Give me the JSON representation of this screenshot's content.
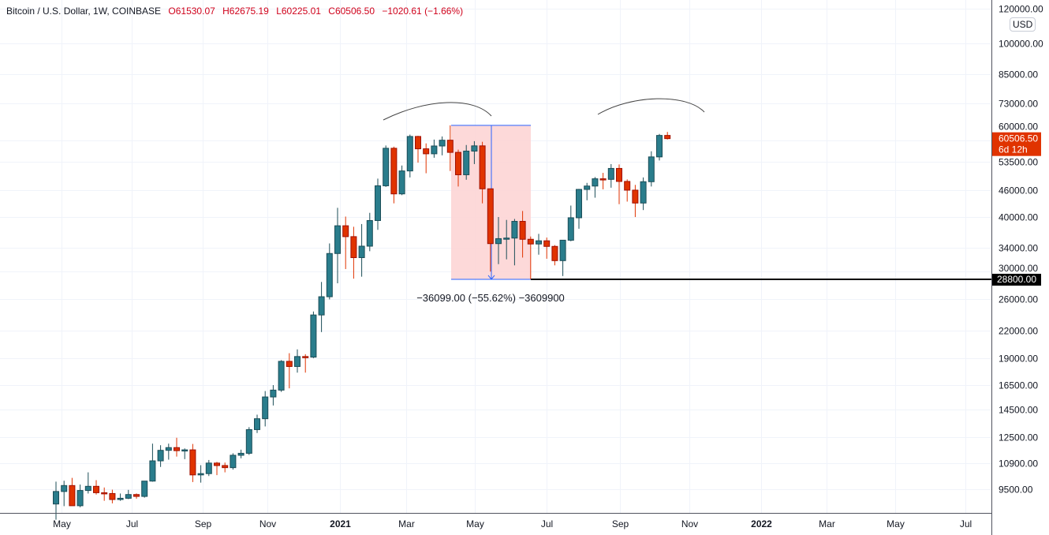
{
  "header": {
    "symbol": "Bitcoin / U.S. Dollar, 1W, COINBASE",
    "open": "O61530.07",
    "high": "H62675.19",
    "low": "L60225.01",
    "close": "C60506.50",
    "change": "−1020.61 (−1.66%)"
  },
  "currency": "USD",
  "colors": {
    "up": "#2a7d8c",
    "up_border": "#1b4d57",
    "down": "#e03300",
    "down_border": "#a01000",
    "measure_fill": "#fdd5d5",
    "measure_line": "#2962ff",
    "last_price": "#e03300"
  },
  "last_price_label": {
    "price": "60506.50",
    "countdown": "6d 12h"
  },
  "level_label": "28800.00",
  "measure_text": "−36099.00 (−55.62%) −3609900",
  "chart_data": {
    "type": "candlestick",
    "title": "Bitcoin / U.S. Dollar, 1W, COINBASE",
    "yscale": "log",
    "ylim": [
      8800,
      125000
    ],
    "y_ticks": [
      "9500.00",
      "10900.00",
      "12500.00",
      "14500.00",
      "16500.00",
      "19000.00",
      "22000.00",
      "26000.00",
      "30000.00",
      "34000.00",
      "40000.00",
      "46000.00",
      "53500.00",
      "60000.00",
      "73000.00",
      "85000.00",
      "100000.00",
      "120000.00"
    ],
    "x_ticks": [
      {
        "label": "May",
        "week": 0.7
      },
      {
        "label": "Jul",
        "week": 9.4
      },
      {
        "label": "Sep",
        "week": 18.2
      },
      {
        "label": "Nov",
        "week": 26.3
      },
      {
        "label": "2021",
        "week": 35.3
      },
      {
        "label": "Mar",
        "week": 43.5
      },
      {
        "label": "May",
        "week": 52.1
      },
      {
        "label": "Jul",
        "week": 61.0
      },
      {
        "label": "Sep",
        "week": 70.1
      },
      {
        "label": "Nov",
        "week": 78.7
      },
      {
        "label": "2022",
        "week": 87.6
      },
      {
        "label": "Mar",
        "week": 95.8
      },
      {
        "label": "May",
        "week": 104.3
      },
      {
        "label": "Jul",
        "week": 113.0
      }
    ],
    "candles": [
      [
        8800,
        9900,
        8100,
        9400
      ],
      [
        9400,
        9950,
        8700,
        9700
      ],
      [
        9700,
        10100,
        8900,
        8720
      ],
      [
        8720,
        9750,
        8650,
        9450
      ],
      [
        9450,
        10400,
        9300,
        9660
      ],
      [
        9660,
        9980,
        9250,
        9340
      ],
      [
        9340,
        9600,
        8950,
        9300
      ],
      [
        9300,
        9490,
        8830,
        9010
      ],
      [
        9010,
        9300,
        8950,
        9070
      ],
      [
        9070,
        9480,
        9030,
        9250
      ],
      [
        9250,
        9300,
        9050,
        9160
      ],
      [
        9160,
        9900,
        9100,
        9930
      ],
      [
        9930,
        12100,
        9900,
        11050
      ],
      [
        11050,
        12000,
        10700,
        11680
      ],
      [
        11680,
        12100,
        11120,
        11850
      ],
      [
        11850,
        12480,
        11300,
        11660
      ],
      [
        11660,
        11800,
        11150,
        11710
      ],
      [
        11710,
        12080,
        9880,
        10260
      ],
      [
        10260,
        10800,
        9850,
        10330
      ],
      [
        10330,
        11100,
        10200,
        10920
      ],
      [
        10920,
        10990,
        10250,
        10780
      ],
      [
        10780,
        10950,
        10400,
        10660
      ],
      [
        10660,
        11500,
        10550,
        11380
      ],
      [
        11380,
        11720,
        11200,
        11500
      ],
      [
        11500,
        13200,
        11400,
        13030
      ],
      [
        13030,
        14100,
        12800,
        13800
      ],
      [
        13800,
        15970,
        13250,
        15480
      ],
      [
        15480,
        16480,
        14800,
        16050
      ],
      [
        16050,
        18800,
        15900,
        18680
      ],
      [
        18680,
        19500,
        16200,
        18180
      ],
      [
        18180,
        19900,
        17600,
        19160
      ],
      [
        19160,
        19400,
        17600,
        19100
      ],
      [
        19100,
        24300,
        19000,
        23860
      ],
      [
        23860,
        28400,
        21800,
        26270
      ],
      [
        26270,
        34800,
        25900,
        33000
      ],
      [
        33000,
        42000,
        28200,
        38200
      ],
      [
        38200,
        40100,
        30400,
        36070
      ],
      [
        36070,
        38000,
        28900,
        32290
      ],
      [
        32290,
        38550,
        29200,
        34300
      ],
      [
        34300,
        40900,
        33400,
        39270
      ],
      [
        39270,
        49000,
        37400,
        47170
      ],
      [
        47170,
        58350,
        46900,
        57500
      ],
      [
        57500,
        58000,
        43000,
        45200
      ],
      [
        45200,
        52500,
        44900,
        51020
      ],
      [
        51020,
        61800,
        49300,
        61200
      ],
      [
        61200,
        61400,
        53300,
        57340
      ],
      [
        57340,
        59000,
        50400,
        55850
      ],
      [
        55850,
        60200,
        54700,
        58200
      ],
      [
        58200,
        61200,
        55400,
        60000
      ],
      [
        60000,
        64900,
        51000,
        56270
      ],
      [
        56270,
        57100,
        47000,
        50000
      ],
      [
        50000,
        58500,
        48700,
        56650
      ],
      [
        56650,
        59700,
        52900,
        58240
      ],
      [
        58240,
        59500,
        43000,
        46430
      ],
      [
        46430,
        46500,
        30000,
        34770
      ],
      [
        34770,
        40000,
        31200,
        35690
      ],
      [
        35690,
        39400,
        32000,
        35800
      ],
      [
        35800,
        39600,
        31000,
        39100
      ],
      [
        39100,
        41300,
        32300,
        35570
      ],
      [
        35570,
        36100,
        28800,
        34700
      ],
      [
        34700,
        36600,
        32800,
        35290
      ],
      [
        35290,
        35900,
        32100,
        34260
      ],
      [
        34260,
        34500,
        31000,
        31780
      ],
      [
        31780,
        35400,
        29300,
        35400
      ],
      [
        35400,
        42500,
        35200,
        39850
      ],
      [
        39850,
        46400,
        37600,
        46280
      ],
      [
        46280,
        47900,
        43700,
        47110
      ],
      [
        47110,
        49400,
        44300,
        48950
      ],
      [
        48950,
        50500,
        46300,
        48800
      ],
      [
        48800,
        52900,
        46700,
        51700
      ],
      [
        51700,
        52800,
        42800,
        48270
      ],
      [
        48270,
        48800,
        43400,
        46100
      ],
      [
        46100,
        47400,
        40000,
        43070
      ],
      [
        43070,
        49300,
        41500,
        48200
      ],
      [
        48200,
        56600,
        47000,
        54940
      ],
      [
        54940,
        62000,
        53900,
        61530
      ],
      [
        61530,
        62675,
        60225,
        60506
      ]
    ]
  }
}
